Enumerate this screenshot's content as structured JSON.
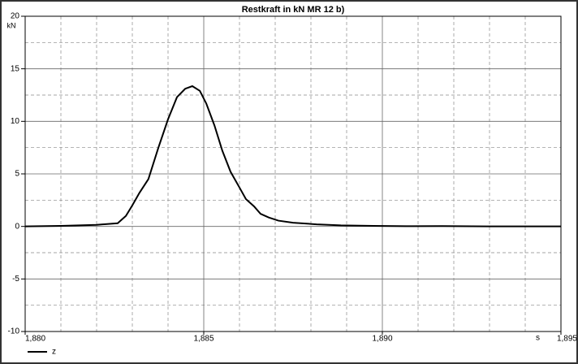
{
  "chart_data": {
    "type": "line",
    "title": "Restkraft in kN MR 12 b)",
    "y_unit": "kN",
    "x_unit": "s",
    "x": [
      1.88,
      1.881,
      1.882,
      1.88259,
      1.88282,
      1.883,
      1.8832,
      1.88345,
      1.88373,
      1.884,
      1.88425,
      1.88448,
      1.88468,
      1.88489,
      1.88507,
      1.8853,
      1.88552,
      1.88575,
      1.886,
      1.88618,
      1.88641,
      1.88659,
      1.88682,
      1.88709,
      1.8875,
      1.88816,
      1.88884,
      1.88975,
      1.89066,
      1.89168,
      1.89293,
      1.895
    ],
    "series": [
      {
        "name": "z",
        "color": "#000000",
        "values": [
          0,
          0.05,
          0.15,
          0.3,
          1.0,
          2.0,
          3.2,
          4.5,
          7.5,
          10.2,
          12.3,
          13.1,
          13.35,
          12.9,
          11.7,
          9.6,
          7.2,
          5.2,
          3.7,
          2.6,
          1.9,
          1.2,
          0.85,
          0.55,
          0.35,
          0.2,
          0.1,
          0.05,
          0.02,
          0.03,
          0,
          0
        ]
      }
    ],
    "xlim": [
      1.88,
      1.895
    ],
    "xticks": [
      {
        "value": 1.88,
        "label": "1,880"
      },
      {
        "value": 1.885,
        "label": "1,885"
      },
      {
        "value": 1.89,
        "label": "1,890"
      },
      {
        "value": 1.895,
        "label": "1,895"
      }
    ],
    "minor_xticks": [
      1.881,
      1.882,
      1.883,
      1.884,
      1.886,
      1.887,
      1.888,
      1.889,
      1.891,
      1.892,
      1.893,
      1.894
    ],
    "ylim": [
      -10,
      20
    ],
    "yticks": [
      -10,
      -5,
      0,
      5,
      10,
      15,
      20
    ],
    "minor_yticks": [
      -7.5,
      -2.5,
      2.5,
      7.5,
      12.5,
      17.5
    ],
    "grid": true
  }
}
